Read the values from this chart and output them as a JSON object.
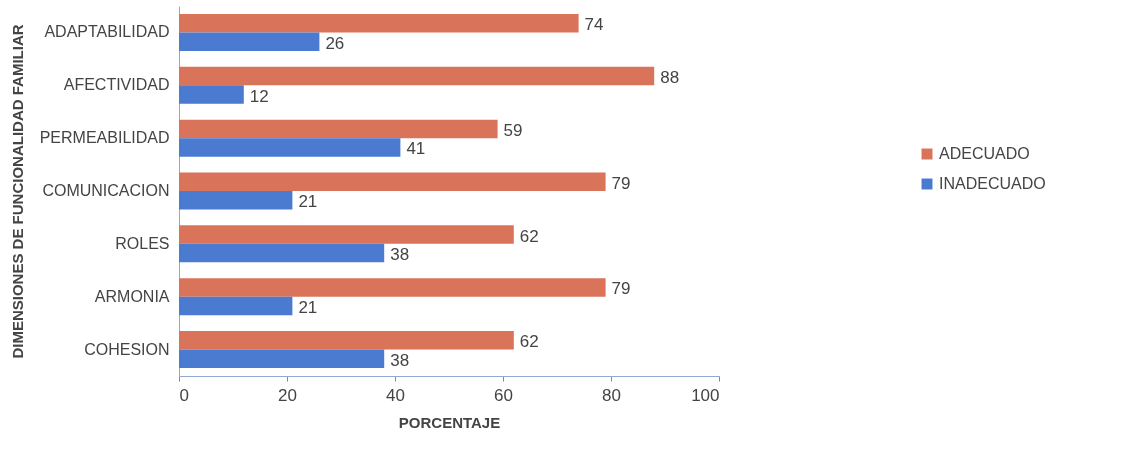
{
  "chart_data": {
    "type": "bar",
    "orientation": "horizontal",
    "xlabel": "PORCENTAJE",
    "ylabel": "DIMENSIONES DE FUNCIONALIDAD FAMILIAR",
    "categories": [
      "ADAPTABILIDAD",
      "AFECTIVIDAD",
      "PERMEABILIDAD",
      "COMUNICACION",
      "ROLES",
      "ARMONIA",
      "COHESION"
    ],
    "series": [
      {
        "name": "ADECUADO",
        "color": "#d9735a",
        "values": [
          74,
          88,
          59,
          79,
          62,
          79,
          62
        ]
      },
      {
        "name": "INADECUADO",
        "color": "#4a7bd0",
        "values": [
          26,
          12,
          41,
          21,
          38,
          21,
          38
        ]
      }
    ],
    "xlim": [
      0,
      100
    ],
    "xticks": [
      0,
      20,
      40,
      60,
      80,
      100
    ],
    "data_labels": true,
    "legend": "right",
    "grid": false
  }
}
